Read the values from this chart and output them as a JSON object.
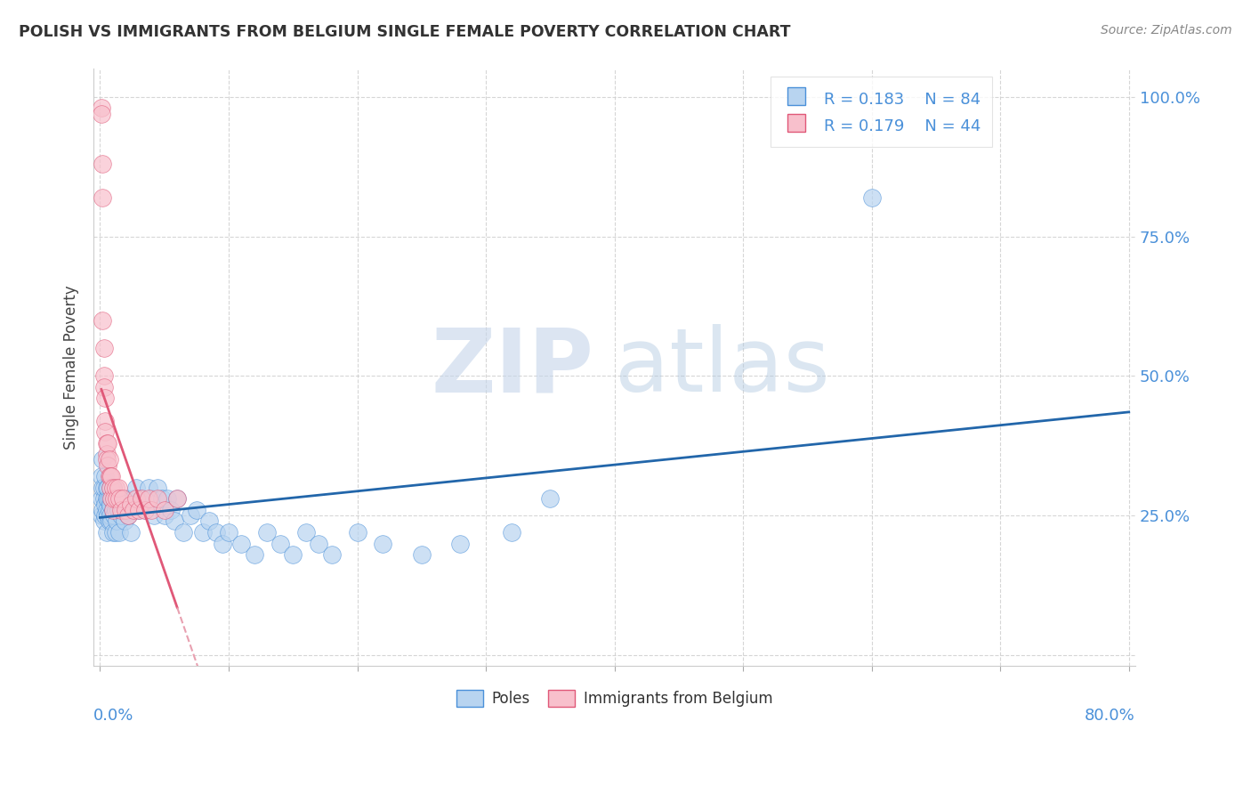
{
  "title": "POLISH VS IMMIGRANTS FROM BELGIUM SINGLE FEMALE POVERTY CORRELATION CHART",
  "source": "Source: ZipAtlas.com",
  "ylabel": "Single Female Poverty",
  "ytick_labels": [
    "",
    "25.0%",
    "50.0%",
    "75.0%",
    "100.0%"
  ],
  "legend_r1": "0.183",
  "legend_n1": "84",
  "legend_r2": "0.179",
  "legend_n2": "44",
  "color_poles_fill": "#b8d4f0",
  "color_poles_edge": "#4a90d9",
  "color_belgium_fill": "#f8c0cc",
  "color_belgium_edge": "#e05878",
  "color_line_poles": "#2266aa",
  "color_line_belgium": "#e05878",
  "color_line_belgium_dash": "#e8a0b0",
  "watermark_zip": "ZIP",
  "watermark_atlas": "atlas",
  "background_color": "#ffffff",
  "xmin": 0.0,
  "xmax": 0.8,
  "ymin": 0.0,
  "ymax": 1.05,
  "poles_x": [
    0.001,
    0.001,
    0.001,
    0.002,
    0.002,
    0.002,
    0.003,
    0.003,
    0.003,
    0.004,
    0.004,
    0.004,
    0.005,
    0.005,
    0.005,
    0.005,
    0.006,
    0.006,
    0.006,
    0.007,
    0.007,
    0.007,
    0.008,
    0.008,
    0.008,
    0.009,
    0.009,
    0.01,
    0.01,
    0.01,
    0.011,
    0.011,
    0.012,
    0.012,
    0.013,
    0.013,
    0.014,
    0.015,
    0.015,
    0.016,
    0.017,
    0.018,
    0.019,
    0.02,
    0.022,
    0.024,
    0.026,
    0.028,
    0.03,
    0.032,
    0.035,
    0.038,
    0.04,
    0.042,
    0.045,
    0.048,
    0.05,
    0.052,
    0.055,
    0.058,
    0.06,
    0.065,
    0.07,
    0.075,
    0.08,
    0.085,
    0.09,
    0.095,
    0.1,
    0.11,
    0.12,
    0.13,
    0.14,
    0.15,
    0.16,
    0.17,
    0.18,
    0.2,
    0.22,
    0.25,
    0.28,
    0.32,
    0.35,
    0.6
  ],
  "poles_y": [
    0.28,
    0.32,
    0.25,
    0.3,
    0.26,
    0.35,
    0.28,
    0.3,
    0.24,
    0.32,
    0.27,
    0.25,
    0.3,
    0.26,
    0.28,
    0.22,
    0.28,
    0.25,
    0.3,
    0.26,
    0.28,
    0.24,
    0.27,
    0.3,
    0.25,
    0.28,
    0.24,
    0.26,
    0.3,
    0.22,
    0.28,
    0.25,
    0.26,
    0.22,
    0.28,
    0.24,
    0.26,
    0.28,
    0.22,
    0.25,
    0.27,
    0.26,
    0.24,
    0.28,
    0.25,
    0.22,
    0.28,
    0.3,
    0.26,
    0.28,
    0.26,
    0.3,
    0.28,
    0.25,
    0.3,
    0.28,
    0.25,
    0.28,
    0.26,
    0.24,
    0.28,
    0.22,
    0.25,
    0.26,
    0.22,
    0.24,
    0.22,
    0.2,
    0.22,
    0.2,
    0.18,
    0.22,
    0.2,
    0.18,
    0.22,
    0.2,
    0.18,
    0.22,
    0.2,
    0.18,
    0.2,
    0.22,
    0.28,
    0.82
  ],
  "belgium_x": [
    0.001,
    0.001,
    0.002,
    0.002,
    0.002,
    0.003,
    0.003,
    0.003,
    0.004,
    0.004,
    0.004,
    0.005,
    0.005,
    0.005,
    0.006,
    0.006,
    0.007,
    0.007,
    0.008,
    0.008,
    0.009,
    0.009,
    0.01,
    0.01,
    0.011,
    0.012,
    0.013,
    0.014,
    0.015,
    0.016,
    0.018,
    0.02,
    0.022,
    0.024,
    0.026,
    0.028,
    0.03,
    0.032,
    0.035,
    0.038,
    0.04,
    0.045,
    0.05,
    0.06
  ],
  "belgium_y": [
    0.98,
    0.97,
    0.88,
    0.82,
    0.6,
    0.55,
    0.5,
    0.48,
    0.46,
    0.42,
    0.4,
    0.38,
    0.36,
    0.35,
    0.38,
    0.34,
    0.35,
    0.32,
    0.32,
    0.3,
    0.32,
    0.28,
    0.3,
    0.26,
    0.28,
    0.3,
    0.28,
    0.3,
    0.28,
    0.26,
    0.28,
    0.26,
    0.25,
    0.27,
    0.26,
    0.28,
    0.26,
    0.28,
    0.26,
    0.28,
    0.26,
    0.28,
    0.26,
    0.28
  ]
}
